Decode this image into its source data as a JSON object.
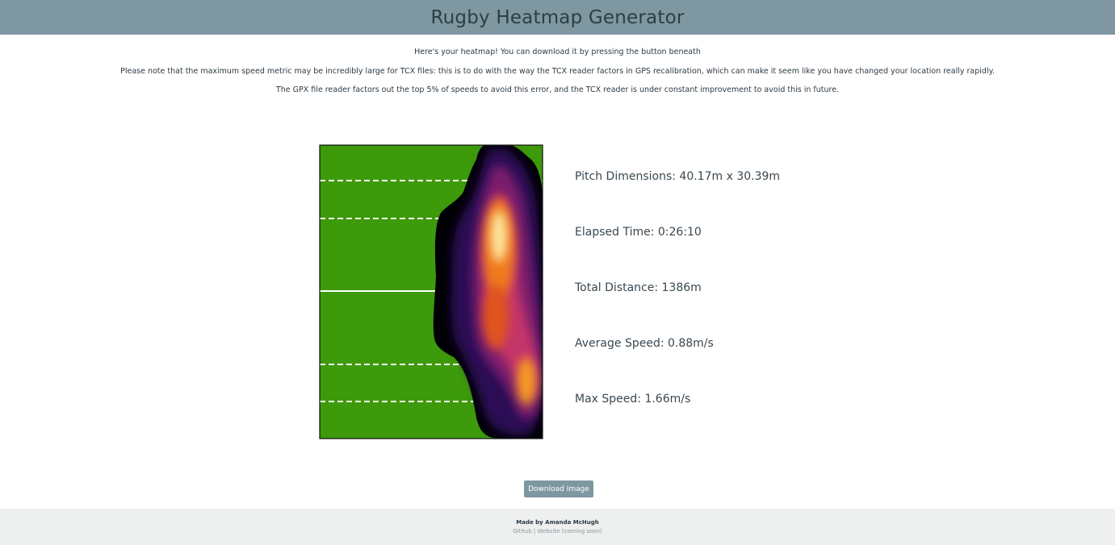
{
  "header": {
    "title": "Rugby Heatmap Generator"
  },
  "notes": [
    "Here's your heatmap! You can download it by pressing the button beneath",
    "Please note that the maximum speed metric may be incredibly large for TCX files: this is to do with the way the TCX reader factors in GPS recalibration, which can make it seem like you have changed your location really rapidly.",
    "The GPX file reader factors out the top 5% of speeds to avoid this error, and the TCX reader is under constant improvement to avoid this in future."
  ],
  "stats": {
    "pitch_dimensions": "Pitch Dimensions: 40.17m x 30.39m",
    "elapsed_time": "Elapsed Time: 0:26:10",
    "total_distance": "Total Distance: 1386m",
    "average_speed": "Average Speed: 0.88m/s",
    "max_speed": "Max Speed: 1.66m/s"
  },
  "download_button": {
    "label": "Download Image"
  },
  "footer": {
    "credit": "Made by Amanda McHugh",
    "github_link": "Github",
    "separator": "|",
    "website_link": "Website (coming soon)"
  },
  "colors": {
    "header_bg": "#7f97a1",
    "pitch_green": "#3d9a0a",
    "footer_bg": "#eef0ef"
  },
  "icons": []
}
